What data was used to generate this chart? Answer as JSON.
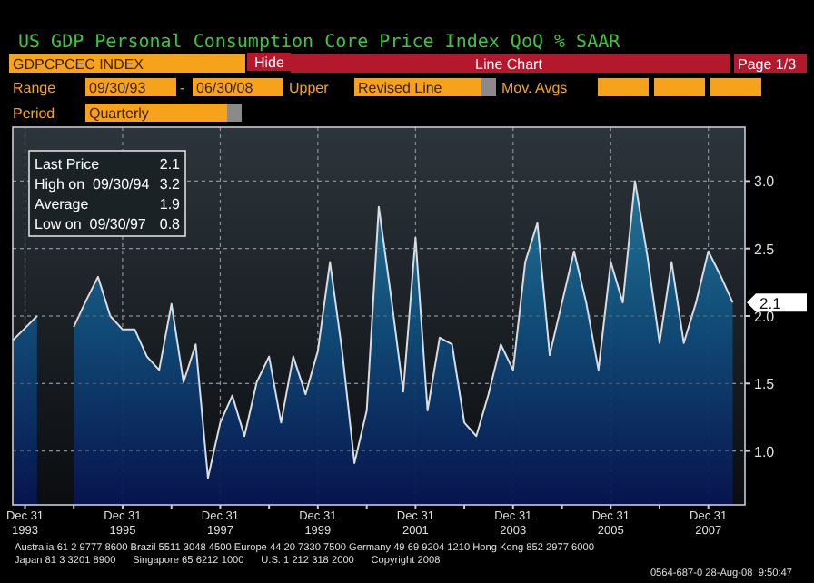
{
  "chart_data": {
    "type": "area",
    "title": "US GDP Personal Consumption Core Price Index QoQ % SAAR",
    "x": [
      "1993-09-30",
      "1993-12-31",
      "1994-03-31",
      "1994-06-30",
      "1994-09-30",
      "1994-12-31",
      "1995-03-31",
      "1995-06-30",
      "1995-09-30",
      "1995-12-31",
      "1996-03-31",
      "1996-06-30",
      "1996-09-30",
      "1996-12-31",
      "1997-03-31",
      "1997-06-30",
      "1997-09-30",
      "1997-12-31",
      "1998-03-31",
      "1998-06-30",
      "1998-09-30",
      "1998-12-31",
      "1999-03-31",
      "1999-06-30",
      "1999-09-30",
      "1999-12-31",
      "2000-03-31",
      "2000-06-30",
      "2000-09-30",
      "2000-12-31",
      "2001-03-31",
      "2001-06-30",
      "2001-09-30",
      "2001-12-31",
      "2002-03-31",
      "2002-06-30",
      "2002-09-30",
      "2002-12-31",
      "2003-03-31",
      "2003-06-30",
      "2003-09-30",
      "2003-12-31",
      "2004-03-31",
      "2004-06-30",
      "2004-09-30",
      "2004-12-31",
      "2005-03-31",
      "2005-06-30",
      "2005-09-30",
      "2005-12-31",
      "2006-03-31",
      "2006-06-30",
      "2006-09-30",
      "2006-12-31",
      "2007-03-31",
      "2007-06-30",
      "2007-09-30",
      "2007-12-31",
      "2008-03-31",
      "2008-06-30"
    ],
    "values": [
      1.82,
      1.91,
      2.0,
      null,
      null,
      1.92,
      2.11,
      2.29,
      2.0,
      1.9,
      1.9,
      1.7,
      1.6,
      2.09,
      1.51,
      1.79,
      0.8,
      1.21,
      1.41,
      1.11,
      1.51,
      1.7,
      1.21,
      1.7,
      1.42,
      1.74,
      2.4,
      1.74,
      0.91,
      1.3,
      2.81,
      2.15,
      1.44,
      2.58,
      1.3,
      1.84,
      1.79,
      1.21,
      1.11,
      1.42,
      1.79,
      1.6,
      2.4,
      2.69,
      1.71,
      2.1,
      2.48,
      2.1,
      1.6,
      2.4,
      2.1,
      3.0,
      2.45,
      1.8,
      2.4,
      1.8,
      2.1,
      2.48,
      2.3,
      2.1
    ],
    "value_labels": [
      null,
      null,
      null,
      null,
      null,
      null,
      null,
      null,
      null,
      null,
      null,
      null,
      null,
      null,
      null,
      null,
      null,
      null,
      null,
      null,
      null,
      null,
      null,
      null,
      null,
      null,
      null,
      null,
      null,
      null,
      null,
      null,
      null,
      null,
      null,
      null,
      null,
      null,
      null,
      null,
      null,
      null,
      null,
      null,
      null,
      null,
      null,
      null,
      null,
      null,
      null,
      null,
      null,
      null,
      null,
      null,
      null,
      null,
      null,
      "2.1"
    ],
    "color": "#2a8aa8",
    "xlim": [
      "1993-09-30",
      "2008-09-30"
    ],
    "xticks": [
      {
        "value": "1993-12-31",
        "label": "Dec 31\n1993"
      },
      {
        "value": "1994-12-31",
        "label": null
      },
      {
        "value": "1995-12-31",
        "label": "Dec 31\n1995"
      },
      {
        "value": "1996-12-31",
        "label": null
      },
      {
        "value": "1997-12-31",
        "label": "Dec 31\n1997"
      },
      {
        "value": "1998-12-31",
        "label": null
      },
      {
        "value": "1999-12-31",
        "label": "Dec 31\n1999"
      },
      {
        "value": "2000-12-31",
        "label": null
      },
      {
        "value": "2001-12-31",
        "label": "Dec 31\n2001"
      },
      {
        "value": "2002-12-31",
        "label": null
      },
      {
        "value": "2003-12-31",
        "label": "Dec 31\n2003"
      },
      {
        "value": "2004-12-31",
        "label": null
      },
      {
        "value": "2005-12-31",
        "label": "Dec 31\n2005"
      },
      {
        "value": "2006-12-31",
        "label": null
      },
      {
        "value": "2007-12-31",
        "label": "Dec 31\n2007"
      }
    ],
    "ylim": [
      0.6,
      3.4
    ],
    "yticks": [
      {
        "value": 1,
        "label": "1.0"
      },
      {
        "value": 1.5,
        "label": "1.5"
      },
      {
        "value": 2,
        "label": "2.0"
      },
      {
        "value": 2.5,
        "label": "2.5"
      },
      {
        "value": 3,
        "label": "3.0"
      }
    ],
    "grid": true,
    "annotations": [
      "GDPCPCEC INDEX",
      "Hide",
      "Line Chart",
      "Page 1/3",
      "Range",
      "09/30/93",
      "-",
      "06/30/08",
      "Upper",
      "Revised Line",
      "Mov. Avgs",
      "Period",
      "Quarterly",
      "Last Price",
      "2.1",
      "High on  09/30/94",
      "3.2",
      "Average",
      "1.9",
      "Low on  09/30/97",
      "0.8",
      "Australia 61 2 9777 8600 Brazil 5511 3048 4500 Europe 44 20 7330 7500 Germany 49 69 9204 1210 Hong Kong 852 2977 6000",
      "Japan 81 3 3201 8900      Singapore 65 6212 1000      U.S. 1 212 318 2000      Copyright 2008",
      "0564-687-0 28-Aug-08  9:50:47"
    ]
  }
}
